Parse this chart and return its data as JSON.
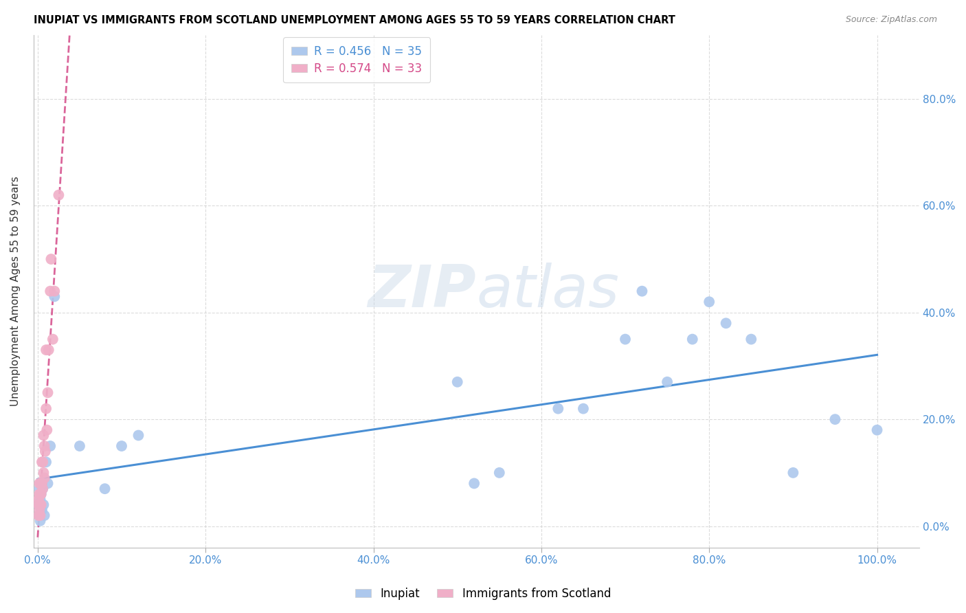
{
  "title": "INUPIAT VS IMMIGRANTS FROM SCOTLAND UNEMPLOYMENT AMONG AGES 55 TO 59 YEARS CORRELATION CHART",
  "source": "Source: ZipAtlas.com",
  "ylabel": "Unemployment Among Ages 55 to 59 years",
  "legend_label1": "Inupiat",
  "legend_label2": "Immigrants from Scotland",
  "r1": "0.456",
  "n1": "35",
  "r2": "0.574",
  "n2": "33",
  "color1": "#adc8ed",
  "color2": "#f0afc8",
  "line_color1": "#4a8fd4",
  "line_color2": "#d44a88",
  "watermark_zip": "ZIP",
  "watermark_atlas": "atlas",
  "xlim": [
    -0.005,
    1.05
  ],
  "ylim": [
    -0.04,
    0.92
  ],
  "x_ticks": [
    0.0,
    0.2,
    0.4,
    0.6,
    0.8,
    1.0
  ],
  "y_ticks": [
    0.0,
    0.2,
    0.4,
    0.6,
    0.8
  ],
  "inupiat_x": [
    0.001,
    0.002,
    0.002,
    0.003,
    0.003,
    0.004,
    0.004,
    0.005,
    0.005,
    0.006,
    0.007,
    0.008,
    0.01,
    0.012,
    0.015,
    0.02,
    0.05,
    0.08,
    0.1,
    0.12,
    0.5,
    0.52,
    0.55,
    0.62,
    0.65,
    0.7,
    0.72,
    0.75,
    0.78,
    0.8,
    0.82,
    0.85,
    0.9,
    0.95,
    1.0
  ],
  "inupiat_y": [
    0.04,
    0.07,
    0.02,
    0.05,
    0.01,
    0.03,
    0.06,
    0.08,
    0.03,
    0.07,
    0.04,
    0.02,
    0.12,
    0.08,
    0.15,
    0.43,
    0.15,
    0.07,
    0.15,
    0.17,
    0.27,
    0.08,
    0.1,
    0.22,
    0.22,
    0.35,
    0.44,
    0.27,
    0.35,
    0.42,
    0.38,
    0.35,
    0.1,
    0.2,
    0.18
  ],
  "scotland_x": [
    0.001,
    0.001,
    0.001,
    0.002,
    0.002,
    0.002,
    0.002,
    0.003,
    0.003,
    0.003,
    0.003,
    0.004,
    0.004,
    0.004,
    0.005,
    0.005,
    0.006,
    0.006,
    0.007,
    0.007,
    0.008,
    0.008,
    0.009,
    0.01,
    0.01,
    0.011,
    0.012,
    0.013,
    0.015,
    0.016,
    0.018,
    0.02,
    0.025
  ],
  "scotland_y": [
    0.05,
    0.04,
    0.02,
    0.06,
    0.04,
    0.08,
    0.03,
    0.06,
    0.08,
    0.04,
    0.02,
    0.06,
    0.08,
    0.04,
    0.12,
    0.08,
    0.12,
    0.07,
    0.17,
    0.1,
    0.15,
    0.09,
    0.14,
    0.22,
    0.33,
    0.18,
    0.25,
    0.33,
    0.44,
    0.5,
    0.35,
    0.44,
    0.62
  ]
}
